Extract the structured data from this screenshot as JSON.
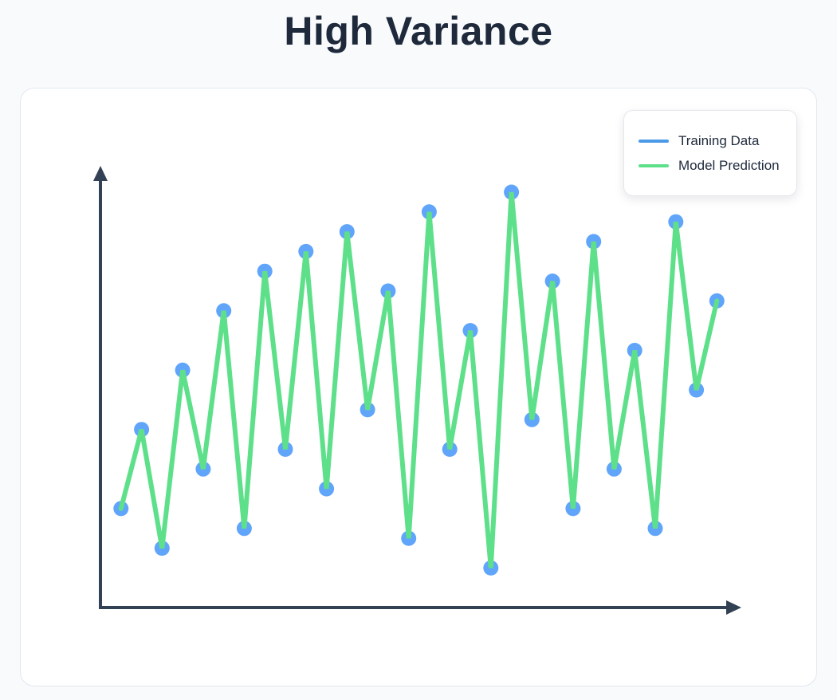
{
  "page": {
    "title": "High Variance"
  },
  "colors": {
    "training": "#60a5fa",
    "prediction": "#5ee08a",
    "axis": "#334155",
    "legend_training": "#4a9ae8"
  },
  "legend": {
    "items": [
      {
        "label": "Training Data"
      },
      {
        "label": "Model Prediction"
      }
    ]
  },
  "chart_data": {
    "type": "line",
    "title": "High Variance",
    "xlabel": "",
    "ylabel": "",
    "grid": false,
    "legend_position": "top-right",
    "axes_labeled": false,
    "xlim": [
      0,
      31.5
    ],
    "ylim": [
      0,
      21.2
    ],
    "x": [
      1,
      2,
      3,
      4,
      5,
      6,
      7,
      8,
      9,
      10,
      11,
      12,
      13,
      14,
      15,
      16,
      17,
      18,
      19,
      20,
      21,
      22,
      23,
      24,
      25,
      26,
      27,
      28,
      29,
      30
    ],
    "series": [
      {
        "name": "Training Data",
        "style": "points",
        "values": [
          5,
          9,
          3,
          12,
          7,
          15,
          4,
          17,
          8,
          18,
          6,
          19,
          10,
          16,
          3.5,
          20,
          8,
          14,
          2,
          21,
          9.5,
          16.5,
          5,
          18.5,
          7,
          13,
          4,
          19.5,
          11,
          15.5
        ]
      },
      {
        "name": "Model Prediction",
        "style": "line",
        "values": [
          5,
          9,
          3,
          12,
          7,
          15,
          4,
          17,
          8,
          18,
          6,
          19,
          10,
          16,
          3.5,
          20,
          8,
          14,
          2,
          21,
          9.5,
          16.5,
          5,
          18.5,
          7,
          13,
          4,
          19.5,
          11,
          15.5
        ]
      }
    ]
  }
}
